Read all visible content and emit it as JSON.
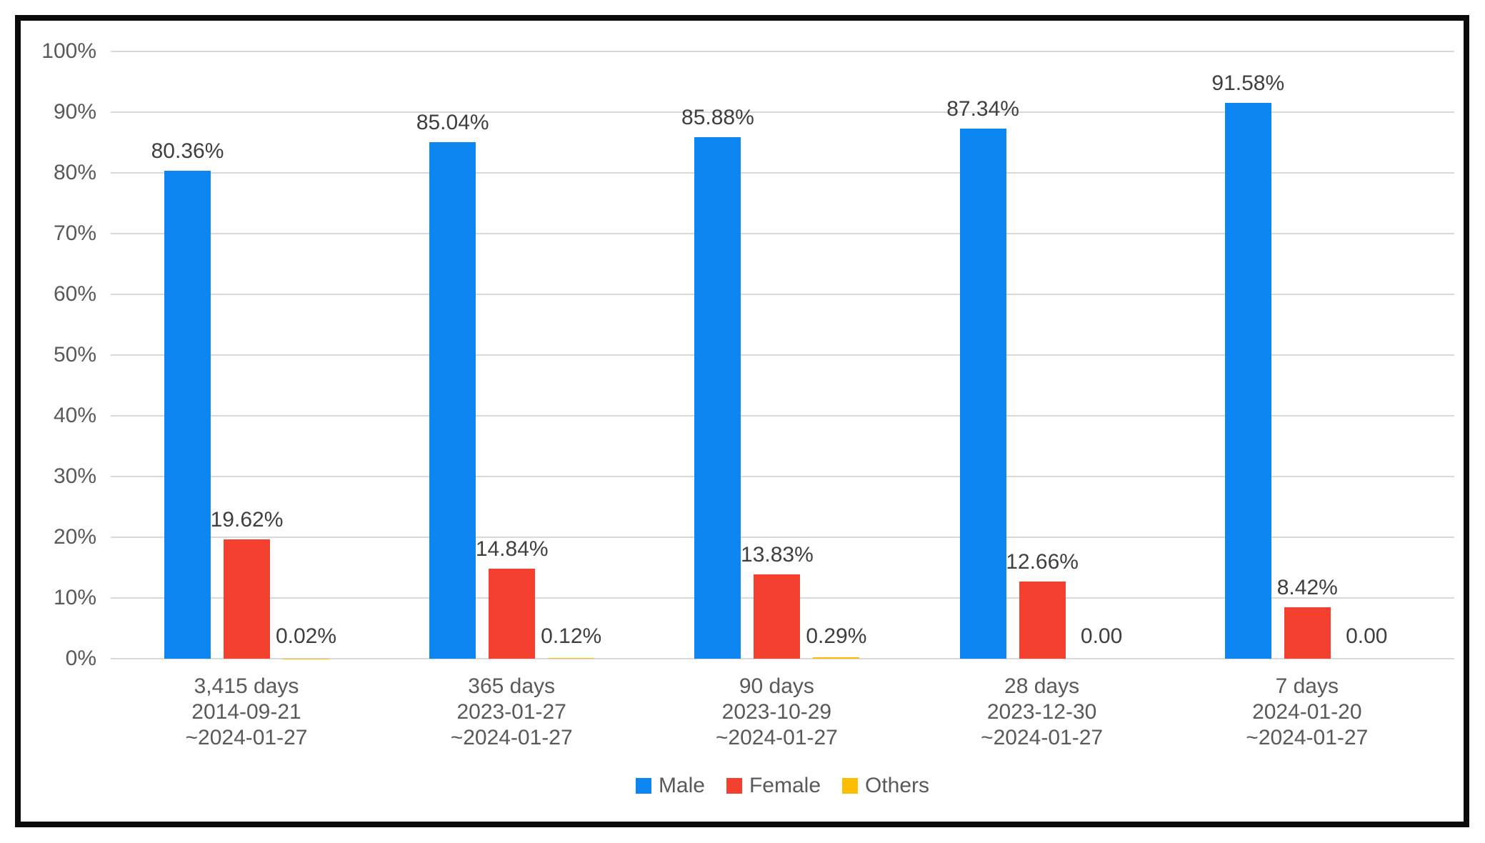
{
  "chart_data": {
    "type": "bar",
    "title": "",
    "xlabel": "",
    "ylabel": "",
    "ylim": [
      0,
      100
    ],
    "grid": true,
    "legend_position": "bottom",
    "y_ticks": [
      "0%",
      "10%",
      "20%",
      "30%",
      "40%",
      "50%",
      "60%",
      "70%",
      "80%",
      "90%",
      "100%"
    ],
    "categories": [
      [
        "3,415 days",
        "2014-09-21",
        "~2024-01-27"
      ],
      [
        "365 days",
        "2023-01-27",
        "~2024-01-27"
      ],
      [
        "90 days",
        "2023-10-29",
        "~2024-01-27"
      ],
      [
        "28 days",
        "2023-12-30",
        "~2024-01-27"
      ],
      [
        "7 days",
        "2024-01-20",
        "~2024-01-27"
      ]
    ],
    "series": [
      {
        "name": "Male",
        "color": "#0e86f1",
        "values": [
          80.36,
          85.04,
          85.88,
          87.34,
          91.58
        ],
        "labels": [
          "80.36%",
          "85.04%",
          "85.88%",
          "87.34%",
          "91.58%"
        ]
      },
      {
        "name": "Female",
        "color": "#f4402e",
        "values": [
          19.62,
          14.84,
          13.83,
          12.66,
          8.42
        ],
        "labels": [
          "19.62%",
          "14.84%",
          "13.83%",
          "12.66%",
          "8.42%"
        ]
      },
      {
        "name": "Others",
        "color": "#fcbd02",
        "values": [
          0.02,
          0.12,
          0.29,
          0.0,
          0.0
        ],
        "labels": [
          "0.02%",
          "0.12%",
          "0.29%",
          "0.00",
          "0.00"
        ]
      }
    ],
    "colors": {
      "gridline": "#d9d9d9",
      "axis_text": "#595959",
      "data_label_text": "#3f3f3f",
      "frame_border": "#0a0a0a",
      "background": "#ffffff"
    }
  }
}
